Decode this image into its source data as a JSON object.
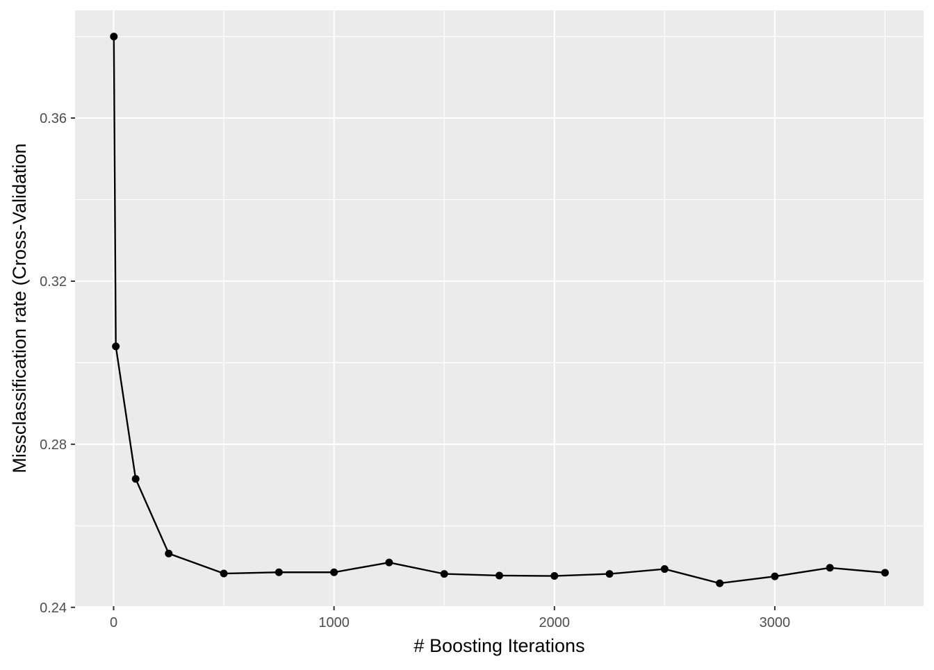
{
  "chart_data": {
    "type": "line",
    "title": "",
    "xlabel": "# Boosting Iterations",
    "ylabel": "Missclassification rate (Cross-Validation",
    "x_ticks": [
      "0",
      "1000",
      "2000",
      "3000"
    ],
    "y_ticks": [
      "0.24",
      "0.28",
      "0.32",
      "0.36"
    ],
    "xlim": [
      -175,
      3675
    ],
    "ylim": [
      0.2403,
      0.3864
    ],
    "grid": true,
    "legend": "none",
    "series": [
      {
        "x": [
          1,
          10,
          100,
          250,
          500,
          750,
          1000,
          1250,
          1500,
          1750,
          2000,
          2250,
          2500,
          2750,
          3000,
          3250,
          3500
        ],
        "values": [
          0.38,
          0.304,
          0.2715,
          0.2532,
          0.2483,
          0.2486,
          0.2486,
          0.251,
          0.2482,
          0.2478,
          0.2477,
          0.2482,
          0.2494,
          0.2459,
          0.2476,
          0.2497,
          0.2485
        ]
      }
    ],
    "colors": {
      "panel": "#ebebeb",
      "grid": "#ffffff",
      "line": "#000000",
      "point": "#000000",
      "tick_text": "#4d4d4d",
      "axis_title": "#000000"
    }
  }
}
